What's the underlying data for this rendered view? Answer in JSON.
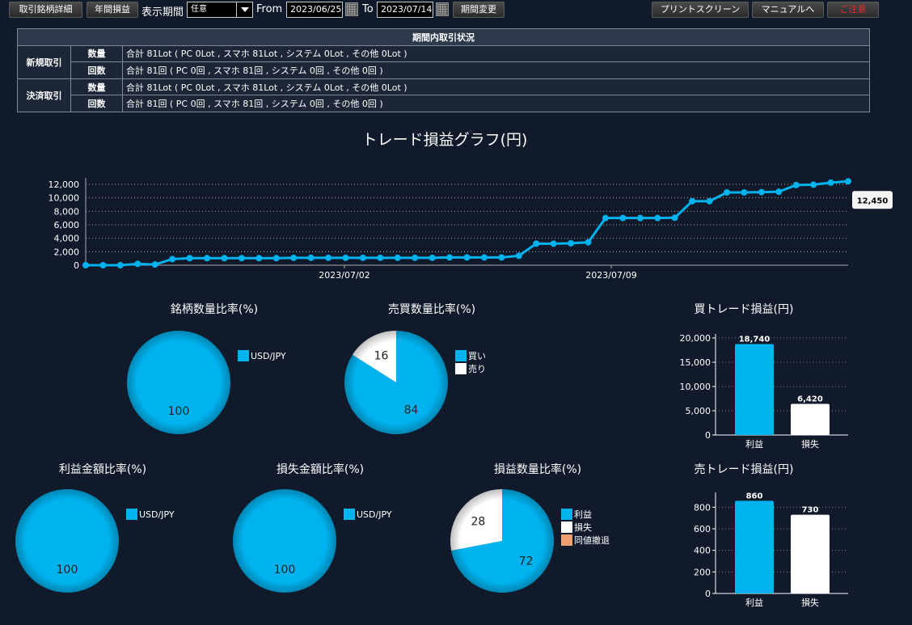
{
  "toolbar": {
    "detail_button": "取引銘柄詳細",
    "annual_button": "年間損益",
    "period_label": "表示期間",
    "period_select": "任意",
    "from_label": "From",
    "from_date": "2023/06/25",
    "to_label": "To",
    "to_date": "2023/07/14",
    "change_button": "期間変更",
    "print_button": "プリントスクリーン",
    "manual_button": "マニュアルへ",
    "close_button": "ご注意"
  },
  "summary": {
    "caption": "期間内取引状況",
    "rows": [
      {
        "group": "新規取引",
        "sub": "数量",
        "value": "合計 81Lot ( PC 0Lot , スマホ 81Lot , システム 0Lot , その他 0Lot )"
      },
      {
        "group": "",
        "sub": "回数",
        "value": "合計 81回 ( PC 0回 , スマホ 81回 , システム 0回 , その他 0回 )"
      },
      {
        "group": "決済取引",
        "sub": "数量",
        "value": "合計 81Lot ( PC 0Lot , スマホ 81Lot , システム 0Lot , その他 0Lot )"
      },
      {
        "group": "",
        "sub": "回数",
        "value": "合計 81回 ( PC 0回 , スマホ 81回 , システム 0回 , その他 0回 )"
      }
    ]
  },
  "colors": {
    "accent": "#00b3ef",
    "white": "#ffffff",
    "orange": "#f0a070",
    "bg": "#111a2b"
  },
  "chart_data": [
    {
      "type": "line",
      "title": "トレード損益グラフ(円)",
      "x_ticks": [
        "2023/07/02",
        "2023/07/09"
      ],
      "y_ticks": [
        "0",
        "2,000",
        "4,000",
        "6,000",
        "8,000",
        "10,000",
        "12,000"
      ],
      "ylim": [
        0,
        12000
      ],
      "y": [
        0,
        0,
        0,
        200,
        100,
        900,
        1050,
        1050,
        1050,
        1050,
        1050,
        1050,
        1100,
        1100,
        1100,
        1100,
        1100,
        1100,
        1100,
        1100,
        1100,
        1150,
        1150,
        1150,
        1150,
        1400,
        3200,
        3200,
        3250,
        3400,
        7000,
        7000,
        7000,
        7000,
        7050,
        9500,
        9500,
        10800,
        10800,
        10850,
        10900,
        11900,
        11950,
        12250,
        12450
      ],
      "last_label": "12,450"
    },
    {
      "type": "pie",
      "title": "銘柄数量比率(%)",
      "slices": [
        {
          "label": "USD/JPY",
          "value": 100
        }
      ],
      "legend": [
        "USD/JPY"
      ]
    },
    {
      "type": "pie",
      "title": "売買数量比率(%)",
      "slices": [
        {
          "label": "買い",
          "value": 84
        },
        {
          "label": "売り",
          "value": 16
        }
      ],
      "legend": [
        "買い",
        "売り"
      ]
    },
    {
      "type": "bar",
      "title": "買トレード損益(円)",
      "categories": [
        "利益",
        "損失"
      ],
      "values": [
        18740,
        6420
      ],
      "value_labels": [
        "18,740",
        "6,420"
      ],
      "ylim": [
        0,
        20000
      ],
      "y_ticks": [
        "0",
        "5,000",
        "10,000",
        "15,000",
        "20,000"
      ]
    },
    {
      "type": "pie",
      "title": "利益金額比率(%)",
      "slices": [
        {
          "label": "USD/JPY",
          "value": 100
        }
      ],
      "legend": [
        "USD/JPY"
      ]
    },
    {
      "type": "pie",
      "title": "損失金額比率(%)",
      "slices": [
        {
          "label": "USD/JPY",
          "value": 100
        }
      ],
      "legend": [
        "USD/JPY"
      ]
    },
    {
      "type": "pie",
      "title": "損益数量比率(%)",
      "slices": [
        {
          "label": "利益",
          "value": 72
        },
        {
          "label": "損失",
          "value": 28
        },
        {
          "label": "同値撤退",
          "value": 0
        }
      ],
      "legend": [
        "利益",
        "損失",
        "同値撤退"
      ]
    },
    {
      "type": "bar",
      "title": "売トレード損益(円)",
      "categories": [
        "利益",
        "損失"
      ],
      "values": [
        860,
        730
      ],
      "value_labels": [
        "860",
        "730"
      ],
      "ylim": [
        0,
        900
      ],
      "y_ticks": [
        "0",
        "200",
        "400",
        "600",
        "800"
      ]
    }
  ]
}
